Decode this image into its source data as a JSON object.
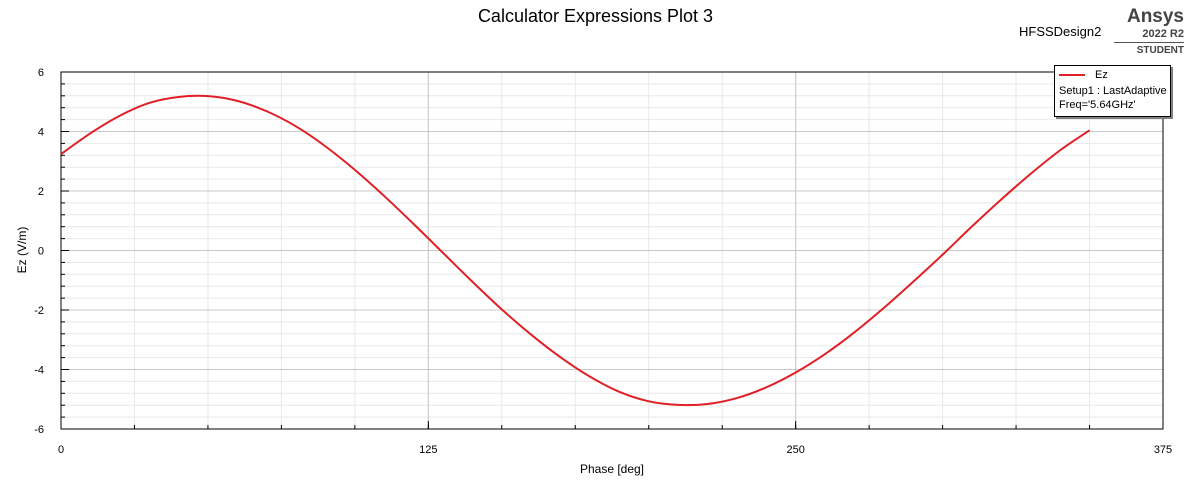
{
  "header": {
    "title": "Calculator Expressions Plot 3",
    "design_name": "HFSSDesign2",
    "brand": {
      "name": "Ansys",
      "version": "2022 R2",
      "edition": "STUDENT"
    }
  },
  "legend": {
    "series_name": "Ez",
    "setup": "Setup1 : LastAdaptive",
    "freq": "Freq='5.64GHz'"
  },
  "colors": {
    "series": "#e01f26",
    "grid_major": "#c8c8c8",
    "grid_minor": "#e8e8e8"
  },
  "chart_data": {
    "type": "line",
    "title": "Calculator Expressions Plot 3",
    "xlabel": "Phase [deg]",
    "ylabel": "Ez (V/m)",
    "xlim": [
      0,
      375
    ],
    "ylim": [
      -6,
      6
    ],
    "x_ticks": [
      0,
      125,
      250,
      375
    ],
    "y_ticks": [
      -6,
      -4,
      -2,
      0,
      2,
      4,
      6
    ],
    "grid": true,
    "legend_position": "top-right",
    "series": [
      {
        "name": "Ez",
        "x": [
          0,
          10,
          20,
          30,
          40,
          50,
          60,
          70,
          80,
          90,
          100,
          110,
          120,
          130,
          140,
          150,
          160,
          170,
          180,
          190,
          200,
          210,
          220,
          230,
          240,
          250,
          260,
          270,
          280,
          290,
          300,
          310,
          320,
          330,
          340,
          350
        ],
        "y": [
          3.24,
          3.94,
          4.53,
          4.96,
          5.16,
          5.19,
          5.03,
          4.68,
          4.17,
          3.5,
          2.71,
          1.83,
          0.89,
          -0.08,
          -1.05,
          -1.98,
          -2.83,
          -3.59,
          -4.24,
          -4.75,
          -5.07,
          -5.19,
          -5.16,
          -4.96,
          -4.6,
          -4.1,
          -3.48,
          -2.75,
          -1.93,
          -1.05,
          -0.14,
          0.81,
          1.72,
          2.58,
          3.37,
          4.04
        ]
      }
    ]
  }
}
